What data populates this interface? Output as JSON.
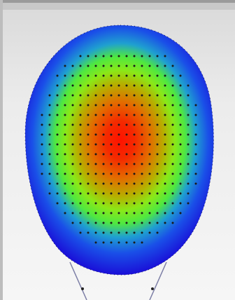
{
  "view": {
    "background_color": "#eeeeee",
    "colormap": [
      "#1a10d8",
      "#1f6ff0",
      "#22d08a",
      "#7ef21a",
      "#e7e600",
      "#f26a00",
      "#ff1200"
    ],
    "sensor_dot_color": "#1a1a1a",
    "outline_color": "#222244",
    "wire_color": "#7a7a9a",
    "max_activation": 1.0,
    "min_activation": 0.0
  }
}
